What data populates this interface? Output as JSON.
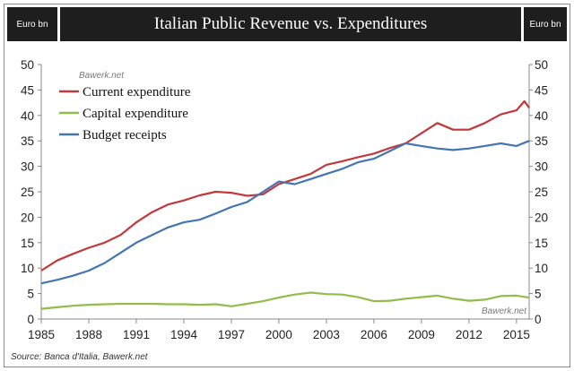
{
  "header": {
    "unit_left": "Euro bn",
    "title": "Italian Public Revenue vs. Expenditures",
    "unit_right": "Euro bn"
  },
  "watermark_top": "Bawerk.net",
  "watermark_bottom": "Bawerk.net",
  "source": "Source: Banca d'Italia, Bawerk.net",
  "chart_data": {
    "type": "line",
    "title": "Italian Public Revenue vs. Expenditures",
    "xlabel": "",
    "ylabel": "Euro bn",
    "xlim": [
      1985,
      2015.8
    ],
    "ylim": [
      0,
      50
    ],
    "x_ticks": [
      1985,
      1988,
      1991,
      1994,
      1997,
      2000,
      2003,
      2006,
      2009,
      2012,
      2015
    ],
    "y_ticks": [
      0,
      5,
      10,
      15,
      20,
      25,
      30,
      35,
      40,
      45,
      50
    ],
    "grid": false,
    "legend_position": "top-left",
    "series": [
      {
        "name": "Current expenditure",
        "color": "#c0393b",
        "points": [
          [
            1985,
            9.5
          ],
          [
            1986,
            11.5
          ],
          [
            1987,
            12.8
          ],
          [
            1988,
            14
          ],
          [
            1989,
            15
          ],
          [
            1990,
            16.5
          ],
          [
            1991,
            19
          ],
          [
            1992,
            21
          ],
          [
            1993,
            22.5
          ],
          [
            1994,
            23.3
          ],
          [
            1995,
            24.3
          ],
          [
            1996,
            25
          ],
          [
            1997,
            24.8
          ],
          [
            1998,
            24.2
          ],
          [
            1999,
            24.5
          ],
          [
            2000,
            26.5
          ],
          [
            2001,
            27.5
          ],
          [
            2002,
            28.5
          ],
          [
            2003,
            30.3
          ],
          [
            2004,
            31
          ],
          [
            2005,
            31.8
          ],
          [
            2006,
            32.5
          ],
          [
            2007,
            33.6
          ],
          [
            2008,
            34.5
          ],
          [
            2009,
            36.5
          ],
          [
            2010,
            38.5
          ],
          [
            2011,
            37.2
          ],
          [
            2012,
            37.2
          ],
          [
            2013,
            38.5
          ],
          [
            2014,
            40.2
          ],
          [
            2015,
            41
          ],
          [
            2015.5,
            42.8
          ],
          [
            2015.8,
            41.5
          ]
        ]
      },
      {
        "name": "Capital expenditure",
        "color": "#92bc4c",
        "points": [
          [
            1985,
            2
          ],
          [
            1986,
            2.3
          ],
          [
            1987,
            2.6
          ],
          [
            1988,
            2.8
          ],
          [
            1989,
            2.9
          ],
          [
            1990,
            3
          ],
          [
            1991,
            3
          ],
          [
            1992,
            3
          ],
          [
            1993,
            2.9
          ],
          [
            1994,
            2.9
          ],
          [
            1995,
            2.8
          ],
          [
            1996,
            2.9
          ],
          [
            1997,
            2.5
          ],
          [
            1998,
            3
          ],
          [
            1999,
            3.5
          ],
          [
            2000,
            4.2
          ],
          [
            2001,
            4.8
          ],
          [
            2002,
            5.2
          ],
          [
            2003,
            4.9
          ],
          [
            2004,
            4.8
          ],
          [
            2005,
            4.3
          ],
          [
            2006,
            3.5
          ],
          [
            2007,
            3.6
          ],
          [
            2008,
            4
          ],
          [
            2009,
            4.3
          ],
          [
            2010,
            4.6
          ],
          [
            2011,
            4
          ],
          [
            2012,
            3.6
          ],
          [
            2013,
            3.8
          ],
          [
            2014,
            4.5
          ],
          [
            2015,
            4.6
          ],
          [
            2015.8,
            4.2
          ]
        ]
      },
      {
        "name": "Budget receipts",
        "color": "#4375b3",
        "points": [
          [
            1985,
            7
          ],
          [
            1986,
            7.7
          ],
          [
            1987,
            8.5
          ],
          [
            1988,
            9.5
          ],
          [
            1989,
            11
          ],
          [
            1990,
            13
          ],
          [
            1991,
            15
          ],
          [
            1992,
            16.5
          ],
          [
            1993,
            18
          ],
          [
            1994,
            19
          ],
          [
            1995,
            19.5
          ],
          [
            1996,
            20.7
          ],
          [
            1997,
            22
          ],
          [
            1998,
            23
          ],
          [
            1999,
            25
          ],
          [
            2000,
            27
          ],
          [
            2001,
            26.5
          ],
          [
            2002,
            27.5
          ],
          [
            2003,
            28.5
          ],
          [
            2004,
            29.5
          ],
          [
            2005,
            30.8
          ],
          [
            2006,
            31.5
          ],
          [
            2007,
            33
          ],
          [
            2008,
            34.5
          ],
          [
            2009,
            34
          ],
          [
            2010,
            33.5
          ],
          [
            2011,
            33.2
          ],
          [
            2012,
            33.5
          ],
          [
            2013,
            34
          ],
          [
            2014,
            34.5
          ],
          [
            2015,
            34
          ],
          [
            2015.8,
            35
          ]
        ]
      }
    ]
  }
}
